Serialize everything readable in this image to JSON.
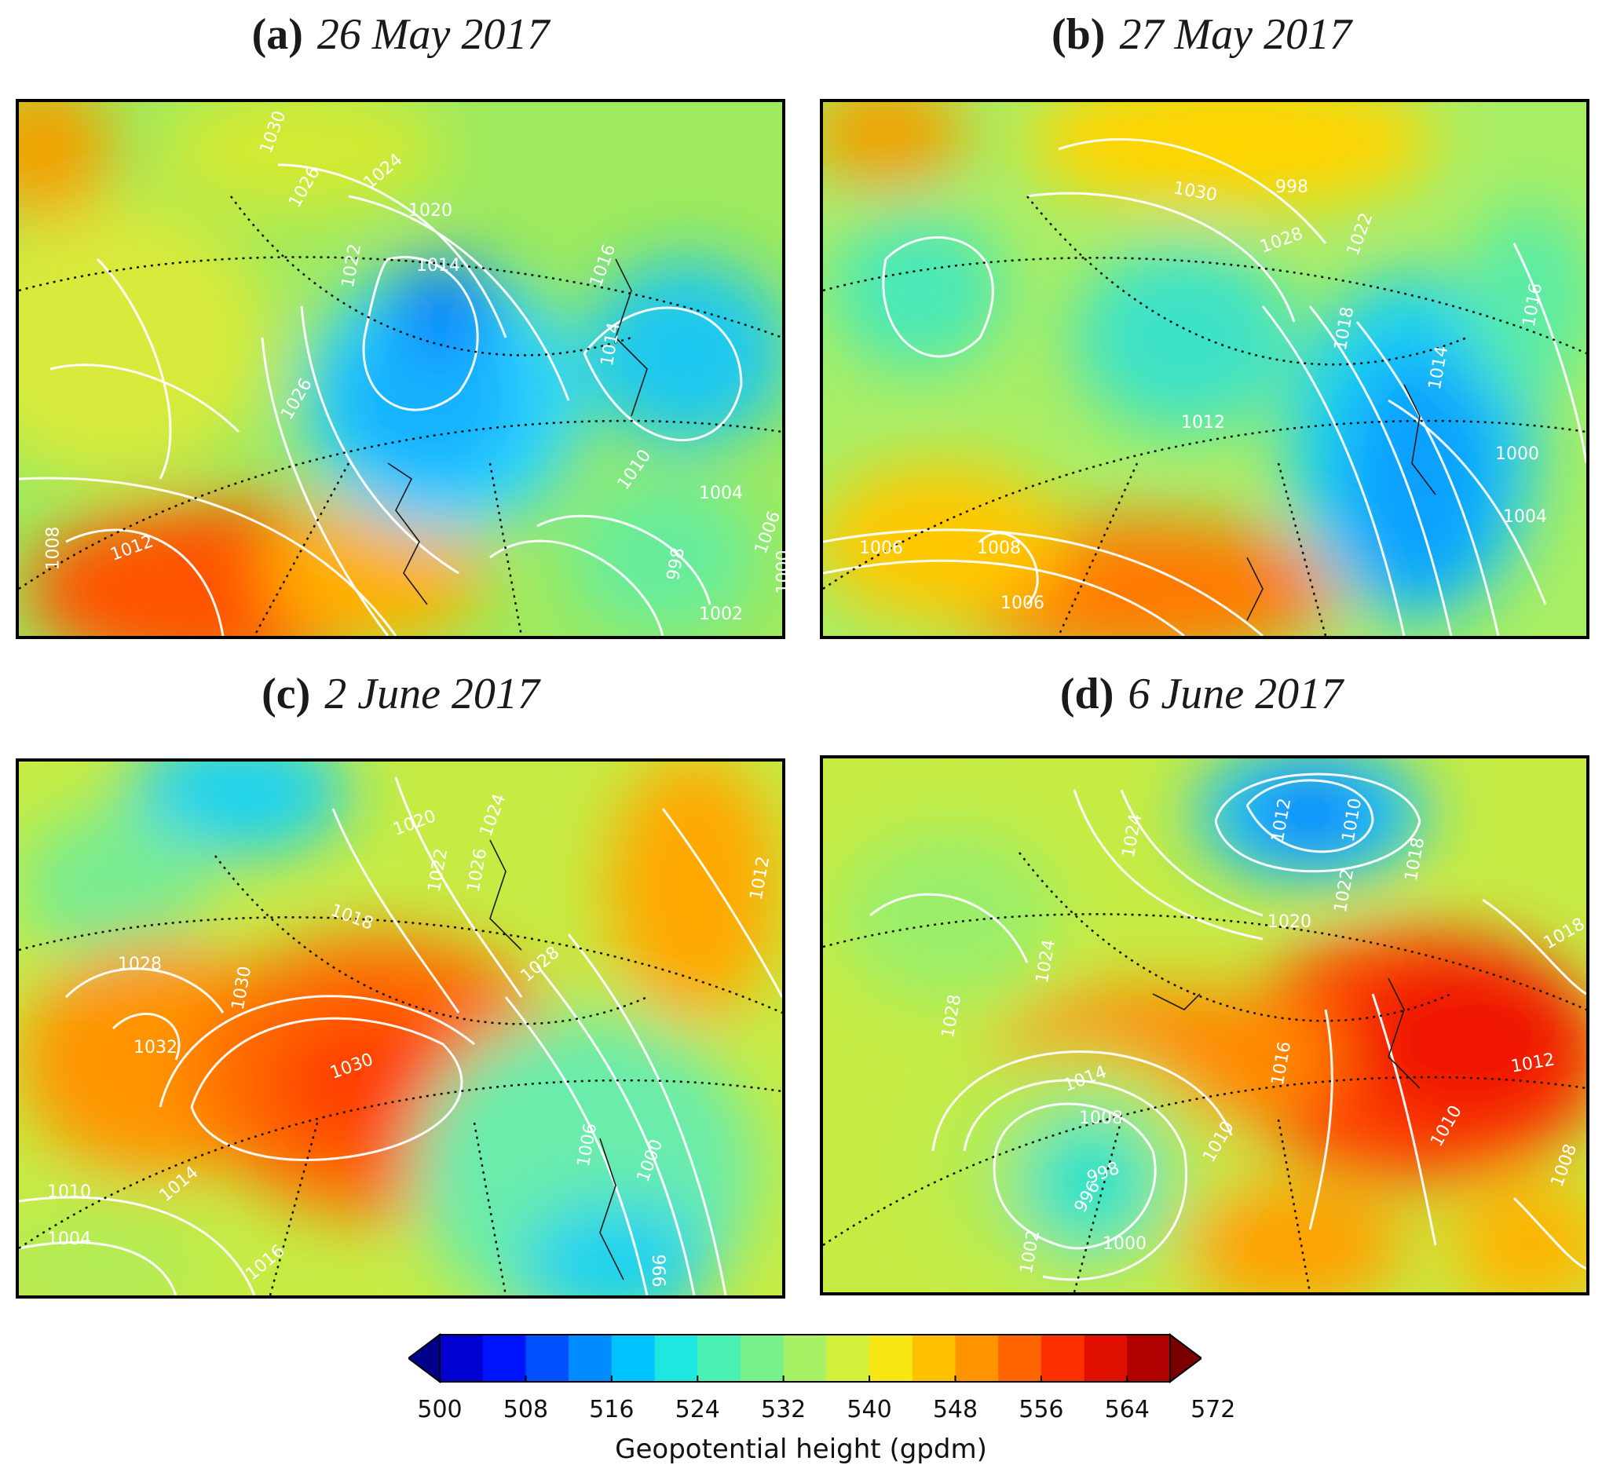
{
  "panels": [
    {
      "tag": "(a)",
      "date": "26 May 2017",
      "labels": [
        "1030",
        "1026",
        "1024",
        "1020",
        "1014",
        "1022",
        "1016",
        "1014",
        "1026",
        "1010",
        "1004",
        "1006",
        "1002",
        "1000",
        "998",
        "1012",
        "1008"
      ]
    },
    {
      "tag": "(b)",
      "date": "27 May 2017",
      "labels": [
        "1030",
        "1028",
        "1022",
        "1018",
        "1016",
        "1014",
        "1012",
        "1008",
        "1006",
        "1006",
        "1000",
        "1004",
        "998"
      ]
    },
    {
      "tag": "(c)",
      "date": "2 June 2017",
      "labels": [
        "1020",
        "1024",
        "1022",
        "1018",
        "1026",
        "1028",
        "1028",
        "1030",
        "1032",
        "1030",
        "1014",
        "1016",
        "1006",
        "1004",
        "1000",
        "996",
        "1012",
        "1010"
      ]
    },
    {
      "tag": "(d)",
      "date": "6 June 2017",
      "labels": [
        "1012",
        "1010",
        "1018",
        "1024",
        "1022",
        "1020",
        "1018",
        "1028",
        "1024",
        "1014",
        "1008",
        "998",
        "996",
        "1000",
        "1002",
        "1010",
        "1016",
        "1012",
        "1010",
        "1008"
      ]
    }
  ],
  "colorbar": {
    "ticks": [
      "500",
      "508",
      "516",
      "524",
      "532",
      "540",
      "548",
      "556",
      "564",
      "572"
    ],
    "label": "Geopotential height (gpdm)",
    "colors": [
      "#00008b",
      "#0000d0",
      "#0015ff",
      "#0050ff",
      "#008cff",
      "#00c4ff",
      "#1ee6e0",
      "#4af0b4",
      "#78f08c",
      "#a8f064",
      "#d2f03c",
      "#f5e614",
      "#ffc000",
      "#ff9400",
      "#ff6400",
      "#ff3000",
      "#e01000",
      "#b00000",
      "#7a0000"
    ]
  }
}
